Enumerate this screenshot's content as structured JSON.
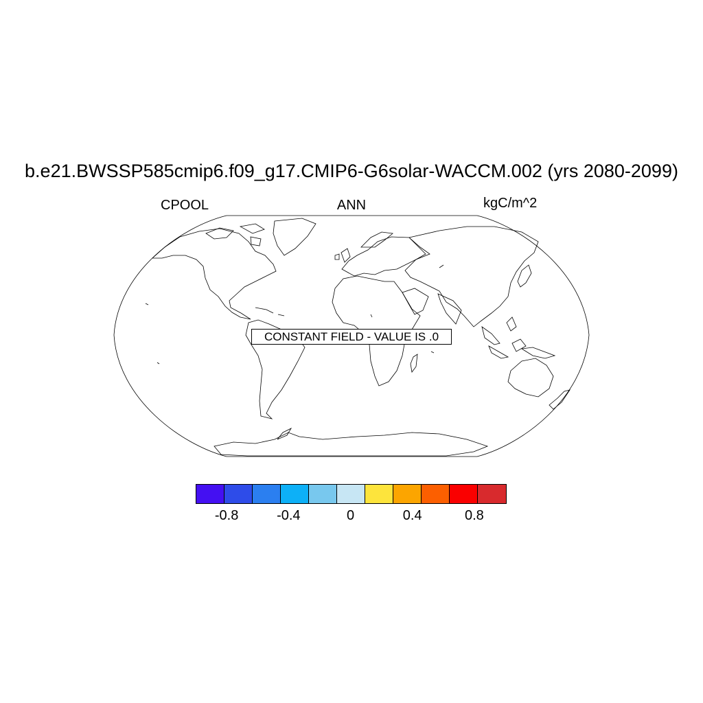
{
  "title": "b.e21.BWSSP585cmip6.f09_g17.CMIP6-G6solar-WACCM.002 (yrs 2080-2099)",
  "variable": "CPOOL",
  "period": "ANN",
  "units": "kgC/m^2",
  "notice": "CONSTANT FIELD - VALUE IS .0",
  "projection": "Robinson (world, coastlines only)",
  "colorbar": {
    "colors": [
      "#4410f2",
      "#2e4ce9",
      "#2b7ff0",
      "#0db0f7",
      "#78c8ee",
      "#c7e6f4",
      "#fde43c",
      "#fca500",
      "#fc5f00",
      "#fa0000",
      "#d82a2d"
    ],
    "boundaries": [
      -1.0,
      -0.8,
      -0.6,
      -0.4,
      -0.2,
      0,
      0.2,
      0.4,
      0.6,
      0.8,
      1.0
    ],
    "tick_labels": [
      "-0.8",
      "-0.4",
      "0",
      "0.4",
      "0.8"
    ],
    "tick_values": [
      -0.8,
      -0.4,
      0,
      0.4,
      0.8
    ]
  }
}
